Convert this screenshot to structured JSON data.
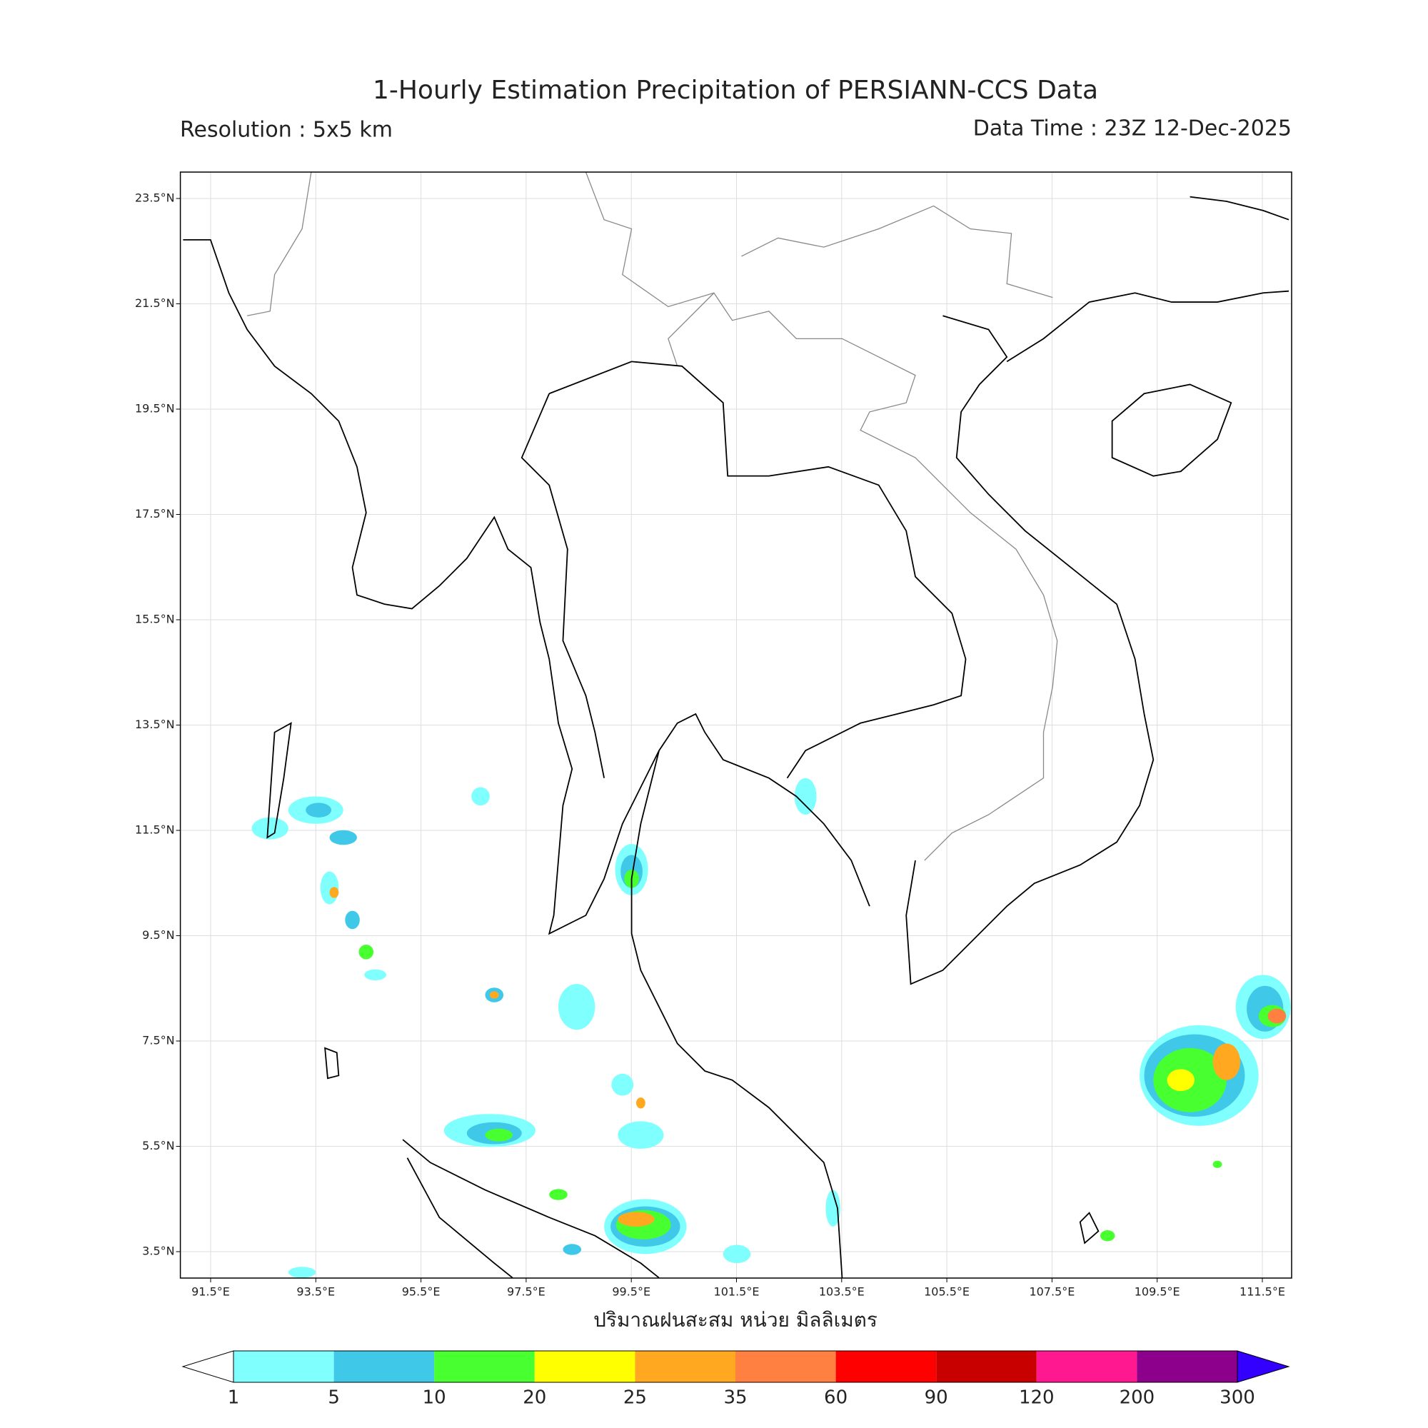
{
  "title": "1-Hourly Estimation Precipitation of PERSIANN-CCS Data",
  "resolution": "Resolution : 5x5 km",
  "data_time": "Data Time : 23Z 12-Dec-2025",
  "lat_labels": [
    "23.5°N",
    "21.5°N",
    "19.5°N",
    "17.5°N",
    "15.5°N",
    "13.5°N",
    "11.5°N",
    "9.5°N",
    "7.5°N",
    "5.5°N",
    "3.5°N"
  ],
  "lon_labels": [
    "91.5°E",
    "93.5°E",
    "95.5°E",
    "97.5°E",
    "99.5°E",
    "101.5°E",
    "103.5°E",
    "105.5°E",
    "107.5°E",
    "109.5°E",
    "111.5°E"
  ],
  "x_label": "ปริมาณฝนสะสม หน่วย มิลลิเมตร",
  "colorbar": {
    "levels": [
      "1",
      "5",
      "10",
      "20",
      "25",
      "35",
      "60",
      "90",
      "120",
      "200",
      "300"
    ],
    "colors": [
      "#80ffff",
      "#40c8e8",
      "#48ff30",
      "#ffff00",
      "#ffa820",
      "#ff8040",
      "#ff0000",
      "#c80000",
      "#ff1890",
      "#8c008c"
    ],
    "under_color": "#ffffff",
    "over_color": "#3300ff"
  }
}
